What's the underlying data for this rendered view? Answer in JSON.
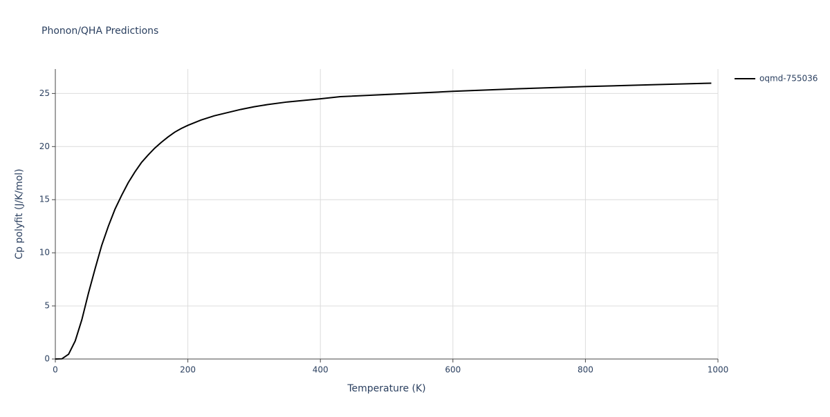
{
  "chart_data": {
    "type": "line",
    "title": "Phonon/QHA Predictions",
    "x_label": "Temperature (K)",
    "y_label": "Cp polyfit (J/K/mol)",
    "x": [
      0,
      10,
      20,
      30,
      40,
      50,
      60,
      70,
      80,
      90,
      100,
      110,
      120,
      130,
      140,
      150,
      160,
      170,
      180,
      190,
      200,
      220,
      240,
      260,
      280,
      300,
      320,
      350,
      400,
      430,
      500,
      600,
      700,
      800,
      900,
      990
    ],
    "series": [
      {
        "name": "oqmd-755036",
        "color": "#000000",
        "values": [
          0,
          0.02,
          0.45,
          1.7,
          3.7,
          6.2,
          8.5,
          10.7,
          12.5,
          14.1,
          15.4,
          16.6,
          17.6,
          18.5,
          19.2,
          19.85,
          20.4,
          20.9,
          21.35,
          21.7,
          22.0,
          22.5,
          22.9,
          23.2,
          23.5,
          23.75,
          23.95,
          24.2,
          24.5,
          24.7,
          24.9,
          25.2,
          25.45,
          25.65,
          25.82,
          25.97
        ]
      }
    ],
    "xlim": [
      0,
      1000
    ],
    "xticks": [
      0,
      200,
      400,
      600,
      800,
      1000
    ],
    "ylim": [
      0,
      27.3
    ],
    "yticks": [
      0,
      5,
      10,
      15,
      20,
      25
    ],
    "grid": true,
    "legend": "right"
  }
}
